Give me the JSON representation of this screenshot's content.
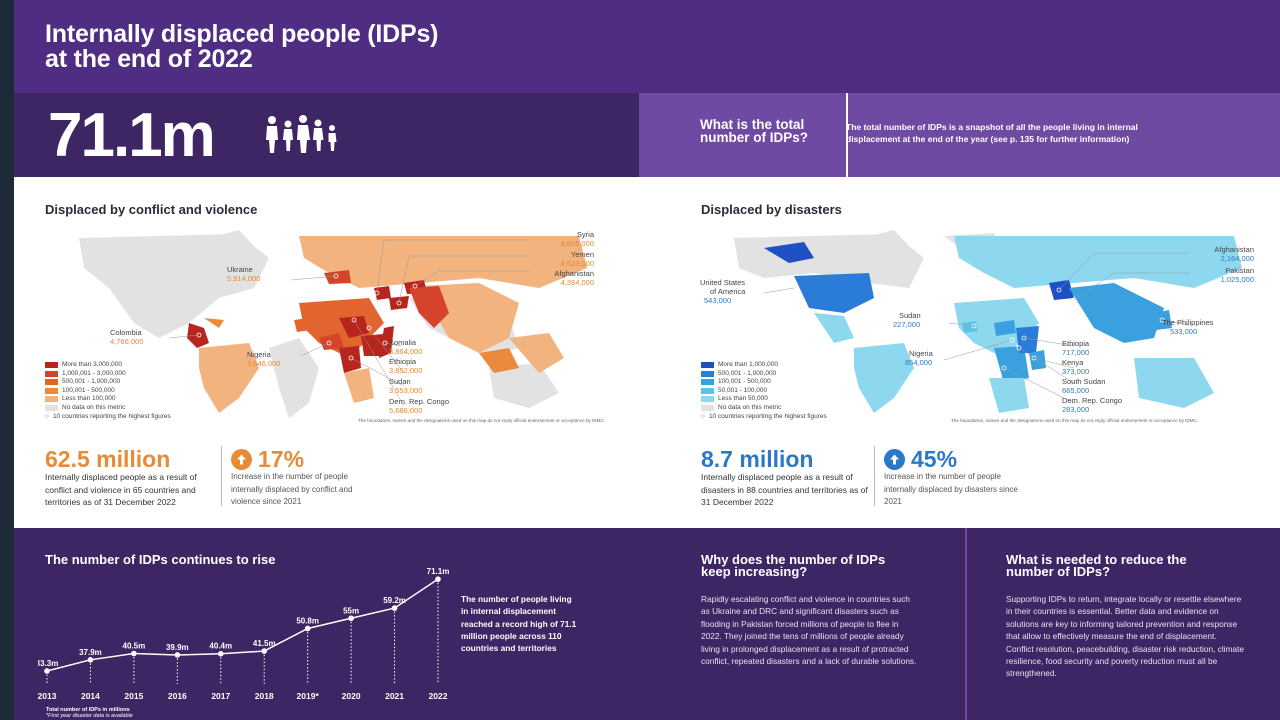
{
  "header": {
    "title_line1": "Internally displaced people (IDPs)",
    "title_line2": "at the end of 2022"
  },
  "total": {
    "value": "71.1m",
    "question": "What is the total number of IDPs?",
    "question_line1": "What is the total",
    "question_line2": "number of IDPs?",
    "answer": "The total number of IDPs is a snapshot of all the people living in internal displacement at the end of the year (see p. 135 for further information)"
  },
  "conflict": {
    "title": "Displaced by conflict and violence",
    "labels": {
      "syria": {
        "name": "Syria",
        "value": "6,865,000"
      },
      "yemen": {
        "name": "Yemen",
        "value": "4,523,000"
      },
      "afghanistan": {
        "name": "Afghanistan",
        "value": "4,394,000"
      },
      "ukraine": {
        "name": "Ukraine",
        "value": "5,914,000"
      },
      "colombia": {
        "name": "Colombia",
        "value": "4,766,000"
      },
      "nigeria": {
        "name": "Nigeria",
        "value": "3,646,000"
      },
      "somalia": {
        "name": "Somalia",
        "value": "3,864,000"
      },
      "ethiopia": {
        "name": "Ethiopia",
        "value": "3,852,000"
      },
      "sudan": {
        "name": "Sudan",
        "value": "3,553,000"
      },
      "drc": {
        "name": "Dem. Rep. Congo",
        "value": "5,686,000"
      }
    },
    "legend": [
      "More than 3,000,000",
      "1,000,001 - 3,000,000",
      "500,001 - 1,000,000",
      "100,001 - 500,000",
      "Less than 100,000",
      "No data on this metric"
    ],
    "legend_colors": [
      "#b8251f",
      "#d4432a",
      "#e2652f",
      "#eb8a3c",
      "#f2b37e",
      "#e2e2e2"
    ],
    "legend_note": "10 countries reporting the highest figures",
    "disclaimer": "The boundaries, names and the designations used on this map do not imply official endorsement or acceptance by IDMC.",
    "stat_value": "62.5 million",
    "stat_desc": "Internally displaced people as a result of conflict and violence in 65 countries and territories as of 31 December 2022",
    "pct": "17%",
    "pct_desc": "Increase in the number of people internally displaced by conflict and violence since 2021"
  },
  "disasters": {
    "title": "Displaced by disasters",
    "labels": {
      "afghanistan": {
        "name": "Afghanistan",
        "value": "2,164,000"
      },
      "pakistan": {
        "name": "Pakistan",
        "value": "1,025,000"
      },
      "usa": {
        "name": "United States of America",
        "name_line1": "United States",
        "name_line2": "of America",
        "value": "543,000"
      },
      "philippines": {
        "name": "The Philippines",
        "value": "533,000"
      },
      "sudan": {
        "name": "Sudan",
        "value": "227,000"
      },
      "ethiopia": {
        "name": "Ethiopia",
        "value": "717,000"
      },
      "nigeria": {
        "name": "Nigeria",
        "value": "854,000"
      },
      "kenya": {
        "name": "Kenya",
        "value": "373,000"
      },
      "south_sudan": {
        "name": "South Sudan",
        "value": "665,000"
      },
      "drc": {
        "name": "Dem. Rep. Congo",
        "value": "283,000"
      }
    },
    "legend": [
      "More than 1,000,000",
      "500,001 - 1,000,000",
      "100,001 - 500,000",
      "50,001 - 100,000",
      "Less than 50,000",
      "No data on this metric"
    ],
    "legend_colors": [
      "#1f4fc4",
      "#2b7bd8",
      "#3aa1de",
      "#5cc3e6",
      "#8dd8ef",
      "#e2e2e2"
    ],
    "legend_note": "10 countries reporting the highest figures",
    "disclaimer": "The boundaries, names and the designations used on this map do not imply official endorsement or acceptance by IDMC.",
    "stat_value": "8.7 million",
    "stat_desc": "Internally displaced people as a result of disasters in 88 countries and territories as of 31 December 2022",
    "pct": "45%",
    "pct_desc": "Increase in the number of people internally displaced by disasters since 2021"
  },
  "colors": {
    "orange": "#e98a35",
    "blue": "#2a78c6",
    "purple_dark": "#3e2563",
    "purple": "#4f2d83",
    "purple_light": "#6f4aa3"
  },
  "trend": {
    "title": "The number of IDPs continues to rise",
    "note": "The number of people living in internal displacement reached a record high of 71.1 million people across 110 countries and territories",
    "foot1": "Total number of IDPs in millions",
    "foot2": "*First year disaster data is available"
  },
  "chart_data": {
    "type": "line",
    "title": "The number of IDPs continues to rise",
    "x": [
      "2013",
      "2014",
      "2015",
      "2016",
      "2017",
      "2018",
      "2019*",
      "2020",
      "2021",
      "2022"
    ],
    "values": [
      33.3,
      37.9,
      40.5,
      39.9,
      40.4,
      41.5,
      50.8,
      55,
      59.2,
      71.1
    ],
    "value_labels": [
      "33.3m",
      "37.9m",
      "40.5m",
      "39.9m",
      "40.4m",
      "41.5m",
      "50.8m",
      "55m",
      "59.2m",
      "71.1m"
    ],
    "ylabel": "Total number of IDPs in millions",
    "ylim": [
      30,
      72
    ],
    "grid": false
  },
  "why": {
    "title_line1": "Why does the number of IDPs",
    "title_line2": "keep increasing?",
    "text": "Rapidly escalating conflict and violence in countries such as Ukraine and DRC and significant disasters such as flooding in Pakistan forced millions of people to flee in 2022. They joined the tens of millions of people already living in prolonged displacement as a result of protracted conflict, repeated disasters and a lack of durable solutions."
  },
  "needed": {
    "title_line1": "What is needed to reduce the",
    "title_line2": "number of IDPs?",
    "text": "Supporting IDPs to return, integrate locally or resettle elsewhere in their countries is essential. Better data and evidence on solutions are key to informing tailored prevention and response that allow to effectively measure the end of displacement. Conflict resolution, peacebuilding, disaster risk reduction, climate resilience, food security and poverty reduction must all be strengthened."
  }
}
